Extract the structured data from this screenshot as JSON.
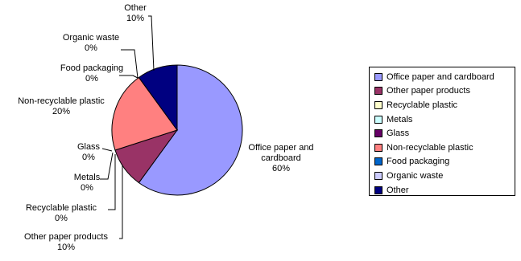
{
  "chart_data": {
    "type": "pie",
    "title": "",
    "unit": "%",
    "slices": [
      {
        "name": "Office paper and cardboard",
        "value": 60,
        "label_value": "60%",
        "color": "#9999FF"
      },
      {
        "name": "Other paper products",
        "value": 10,
        "label_value": "10%",
        "color": "#993366"
      },
      {
        "name": "Recyclable plastic",
        "value": 0,
        "label_value": "0%",
        "color": "#FFFFCC"
      },
      {
        "name": "Metals",
        "value": 0,
        "label_value": "0%",
        "color": "#CCFFFF"
      },
      {
        "name": "Glass",
        "value": 0,
        "label_value": "0%",
        "color": "#660066"
      },
      {
        "name": "Non-recyclable plastic",
        "value": 20,
        "label_value": "20%",
        "color": "#FF8080"
      },
      {
        "name": "Food packaging",
        "value": 0,
        "label_value": "0%",
        "color": "#0066CC"
      },
      {
        "name": "Organic waste",
        "value": 0,
        "label_value": "0%",
        "color": "#CCCCFF"
      },
      {
        "name": "Other",
        "value": 10,
        "label_value": "10%",
        "color": "#000080"
      }
    ],
    "legend_position": "right"
  }
}
